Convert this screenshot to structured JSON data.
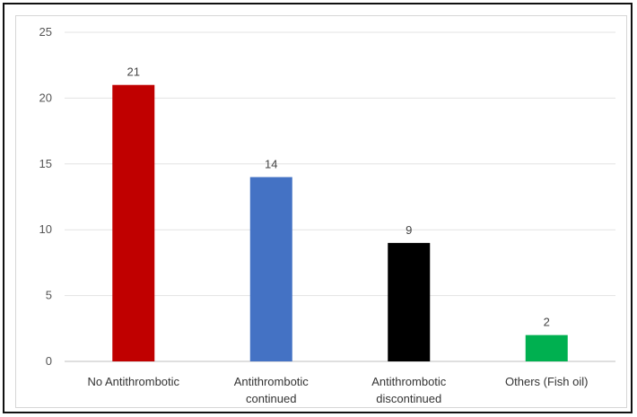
{
  "chart_data": {
    "type": "bar",
    "title": "",
    "xlabel": "",
    "ylabel": "",
    "categories": [
      [
        "No Antithrombotic"
      ],
      [
        "Antithrombotic",
        "continued"
      ],
      [
        "Antithrombotic",
        "discontinued"
      ],
      [
        "Others (Fish oil)"
      ]
    ],
    "values": [
      21,
      14,
      9,
      2
    ],
    "colors": [
      "#c00000",
      "#4472c4",
      "#000000",
      "#00b050"
    ],
    "ylim": [
      0,
      25
    ],
    "yticks": [
      0,
      5,
      10,
      15,
      20,
      25
    ],
    "grid": true,
    "data_labels": true
  }
}
